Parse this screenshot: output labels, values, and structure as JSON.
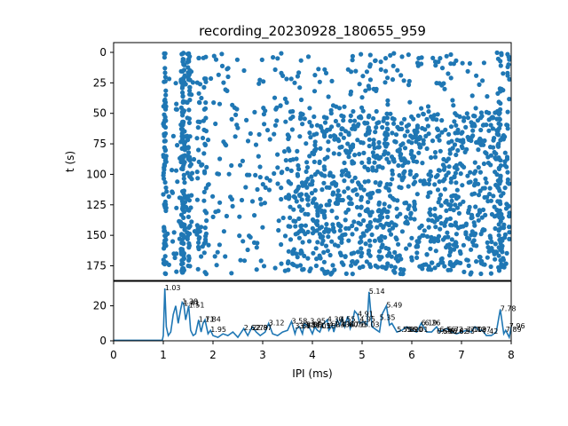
{
  "chart_data": [
    {
      "type": "scatter",
      "title": "recording_20230928_180655_959",
      "xlabel": "",
      "ylabel": "t (s)",
      "xlim": [
        0,
        8
      ],
      "ylim": [
        187,
        -8
      ],
      "y_inverted": true,
      "y_ticks": [
        0,
        25,
        50,
        75,
        100,
        125,
        150,
        175
      ],
      "x_ticks_shown": false,
      "color": "#1f77b4",
      "columns": [
        {
          "x": 1.03,
          "t_start": 0,
          "t_end": 182,
          "count": 75
        },
        {
          "x": 1.38,
          "t_start": 0,
          "t_end": 182,
          "count": 60
        },
        {
          "x": 1.41,
          "t_start": 0,
          "t_end": 182,
          "count": 60
        },
        {
          "x": 1.51,
          "t_start": 0,
          "t_end": 182,
          "count": 55
        },
        {
          "x": 1.71,
          "t_start": 0,
          "t_end": 182,
          "count": 20
        },
        {
          "x": 1.84,
          "t_start": 0,
          "t_end": 182,
          "count": 25
        },
        {
          "x": 5.14,
          "t_start": 0,
          "t_end": 182,
          "count": 30
        },
        {
          "x": 5.49,
          "t_start": 0,
          "t_end": 182,
          "count": 20
        },
        {
          "x": 7.78,
          "t_start": 0,
          "t_end": 182,
          "count": 30
        },
        {
          "x": 7.96,
          "t_start": 0,
          "t_end": 182,
          "count": 20
        }
      ],
      "background_points": 1500,
      "dense_region": {
        "x": [
          3.5,
          8.0
        ],
        "t": [
          48,
          182
        ]
      }
    },
    {
      "type": "line",
      "xlabel": "IPI (ms)",
      "ylabel": "",
      "xlim": [
        0,
        8
      ],
      "ylim": [
        0,
        34
      ],
      "x_ticks": [
        0,
        1,
        2,
        3,
        4,
        5,
        6,
        7,
        8
      ],
      "y_ticks": [
        0,
        20
      ],
      "color": "#1f77b4",
      "series": [
        {
          "x": [
            0,
            0.98,
            1.0,
            1.03,
            1.06,
            1.1,
            1.15,
            1.2,
            1.25,
            1.3,
            1.35,
            1.38,
            1.41,
            1.45,
            1.51,
            1.55,
            1.6,
            1.65,
            1.71,
            1.76,
            1.8,
            1.84,
            1.9,
            1.95,
            2.0,
            2.1,
            2.2,
            2.3,
            2.4,
            2.5,
            2.62,
            2.7,
            2.79,
            2.87,
            2.95,
            3.05,
            3.12,
            3.2,
            3.3,
            3.4,
            3.5,
            3.58,
            3.65,
            3.68,
            3.74,
            3.8,
            3.84,
            3.88,
            3.95,
            4.0,
            4.05,
            4.1,
            4.15,
            4.2,
            4.3,
            4.33,
            4.4,
            4.43,
            4.5,
            4.55,
            4.6,
            4.65,
            4.71,
            4.76,
            4.8,
            4.85,
            4.91,
            4.95,
            5.03,
            5.1,
            5.14,
            5.2,
            5.3,
            5.35,
            5.4,
            5.49,
            5.55,
            5.6,
            5.7,
            5.8,
            5.9,
            6.0,
            6.1,
            6.19,
            6.3,
            6.4,
            6.5,
            6.56,
            6.62,
            6.7,
            6.8,
            6.9,
            7.0,
            7.1,
            7.2,
            7.27,
            7.35,
            7.42,
            7.5,
            7.6,
            7.7,
            7.78,
            7.85,
            7.89,
            7.96,
            8.0
          ],
          "values": [
            0.3,
            0.3,
            3,
            30,
            8,
            3,
            5,
            15,
            20,
            10,
            18,
            22,
            21,
            12,
            20,
            6,
            3,
            4,
            12,
            5,
            10,
            12,
            4,
            6,
            3,
            2,
            4,
            3,
            5,
            2,
            7,
            3,
            8,
            5,
            3,
            5,
            10,
            4,
            3,
            5,
            6,
            11,
            4,
            7,
            8,
            4,
            10,
            9,
            7,
            4,
            8,
            6,
            5,
            9,
            12,
            6,
            9,
            5,
            12,
            9,
            13,
            8,
            14,
            7,
            10,
            17,
            15,
            10,
            11,
            9,
            28,
            8,
            6,
            5,
            15,
            20,
            9,
            10,
            5,
            6,
            8,
            6,
            5,
            10,
            5,
            5,
            8,
            5,
            6,
            7,
            5,
            4,
            5,
            6,
            5,
            8,
            6,
            6,
            3,
            3,
            5,
            18,
            4,
            6,
            2,
            8
          ]
        }
      ],
      "annotations": [
        {
          "x": 1.03,
          "y": 30,
          "text": "1.03"
        },
        {
          "x": 1.38,
          "y": 22,
          "text": "1.38"
        },
        {
          "x": 1.41,
          "y": 21,
          "text": "1.41"
        },
        {
          "x": 1.51,
          "y": 20,
          "text": "1.51"
        },
        {
          "x": 1.71,
          "y": 12,
          "text": "1.71"
        },
        {
          "x": 1.84,
          "y": 12,
          "text": "1.84"
        },
        {
          "x": 1.95,
          "y": 6,
          "text": "1.95"
        },
        {
          "x": 2.62,
          "y": 7,
          "text": "2.62"
        },
        {
          "x": 2.79,
          "y": 7,
          "text": "2.79"
        },
        {
          "x": 2.87,
          "y": 7,
          "text": "2.87"
        },
        {
          "x": 3.12,
          "y": 10,
          "text": "3.12"
        },
        {
          "x": 3.58,
          "y": 11,
          "text": "3.58"
        },
        {
          "x": 3.65,
          "y": 8,
          "text": "3.65"
        },
        {
          "x": 3.74,
          "y": 8,
          "text": "3.74"
        },
        {
          "x": 3.84,
          "y": 9,
          "text": "3.84"
        },
        {
          "x": 3.88,
          "y": 9,
          "text": "3.88"
        },
        {
          "x": 3.95,
          "y": 11,
          "text": "3.95"
        },
        {
          "x": 4.05,
          "y": 8,
          "text": "4.05"
        },
        {
          "x": 4.15,
          "y": 8,
          "text": "4.15"
        },
        {
          "x": 4.3,
          "y": 12,
          "text": "4.30"
        },
        {
          "x": 4.33,
          "y": 9,
          "text": "4.33"
        },
        {
          "x": 4.43,
          "y": 9,
          "text": "4.43"
        },
        {
          "x": 4.55,
          "y": 12,
          "text": "4.55"
        },
        {
          "x": 4.6,
          "y": 9,
          "text": "4.60"
        },
        {
          "x": 4.71,
          "y": 9,
          "text": "4.71"
        },
        {
          "x": 4.76,
          "y": 9,
          "text": "4.76"
        },
        {
          "x": 4.91,
          "y": 15,
          "text": "4.91"
        },
        {
          "x": 4.95,
          "y": 12,
          "text": "4.95"
        },
        {
          "x": 5.03,
          "y": 9,
          "text": "5.03"
        },
        {
          "x": 5.14,
          "y": 28,
          "text": "5.14"
        },
        {
          "x": 5.35,
          "y": 13,
          "text": "5.35"
        },
        {
          "x": 5.49,
          "y": 20,
          "text": "5.49"
        },
        {
          "x": 5.7,
          "y": 6,
          "text": "5.70"
        },
        {
          "x": 5.82,
          "y": 6,
          "text": "5.82"
        },
        {
          "x": 5.9,
          "y": 6,
          "text": "5.90"
        },
        {
          "x": 6.01,
          "y": 6,
          "text": "6.01"
        },
        {
          "x": 6.19,
          "y": 10,
          "text": "6.19"
        },
        {
          "x": 6.26,
          "y": 10,
          "text": "6.26"
        },
        {
          "x": 6.5,
          "y": 5,
          "text": "6.50"
        },
        {
          "x": 6.56,
          "y": 6,
          "text": "6.56"
        },
        {
          "x": 6.62,
          "y": 5,
          "text": "6.62"
        },
        {
          "x": 6.72,
          "y": 6,
          "text": "6.72"
        },
        {
          "x": 6.82,
          "y": 5,
          "text": "6.82"
        },
        {
          "x": 6.95,
          "y": 5,
          "text": "6.95"
        },
        {
          "x": 7.1,
          "y": 6,
          "text": "7.10"
        },
        {
          "x": 7.18,
          "y": 6,
          "text": "7.18"
        },
        {
          "x": 7.27,
          "y": 6,
          "text": "7.27"
        },
        {
          "x": 7.42,
          "y": 5,
          "text": "7.42"
        },
        {
          "x": 7.78,
          "y": 18,
          "text": "7.78"
        },
        {
          "x": 7.89,
          "y": 6,
          "text": "7.89"
        },
        {
          "x": 7.96,
          "y": 8,
          "text": "7.96"
        }
      ]
    }
  ]
}
